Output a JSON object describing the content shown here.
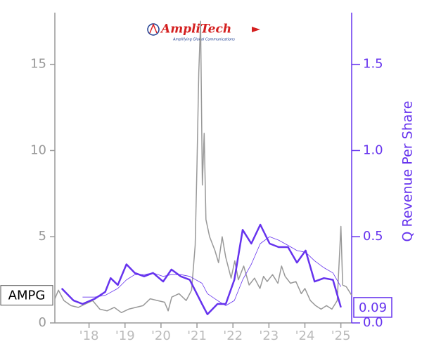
{
  "chart_data": {
    "type": "line",
    "ticker": "AMPG",
    "logo": {
      "text": "AmpliTech",
      "tagline": "Amplifying Global Communications"
    },
    "y2_label": "Q Revenue Per Share",
    "xlim": [
      2017.05,
      2025.3
    ],
    "xticks": [
      {
        "value": 2018,
        "label": "'18"
      },
      {
        "value": 2019,
        "label": "'19"
      },
      {
        "value": 2020,
        "label": "'20"
      },
      {
        "value": 2021,
        "label": "'21"
      },
      {
        "value": 2022,
        "label": "'22"
      },
      {
        "value": 2023,
        "label": "'23"
      },
      {
        "value": 2024,
        "label": "'24"
      },
      {
        "value": 2025,
        "label": "'25"
      }
    ],
    "ylim": [
      0,
      18
    ],
    "yticks": [
      0,
      5,
      10,
      15
    ],
    "y2lim": [
      0,
      1.8
    ],
    "y2ticks": [
      {
        "value": 0,
        "label": "0.0"
      },
      0.5,
      {
        "value": 1,
        "label": "1.0"
      },
      1.5
    ],
    "axis_color": "#999999",
    "y2_color": "#6633ee",
    "series": [
      {
        "color": "#999999",
        "line_width": 1.5,
        "x": [
          2017.05,
          2017.15,
          2017.3,
          2017.5,
          2017.7,
          2017.9,
          2018.1,
          2018.3,
          2018.5,
          2018.7,
          2018.9,
          2019.1,
          2019.3,
          2019.5,
          2019.7,
          2019.9,
          2020.1,
          2020.2,
          2020.3,
          2020.5,
          2020.7,
          2020.85,
          2020.95,
          2021.0,
          2021.05,
          2021.1,
          2021.15,
          2021.2,
          2021.25,
          2021.35,
          2021.5,
          2021.6,
          2021.7,
          2021.8,
          2021.95,
          2022.05,
          2022.15,
          2022.3,
          2022.45,
          2022.6,
          2022.75,
          2022.85,
          2022.95,
          2023.1,
          2023.25,
          2023.35,
          2023.45,
          2023.6,
          2023.75,
          2023.9,
          2024.0,
          2024.15,
          2024.3,
          2024.45,
          2024.6,
          2024.75,
          2024.9,
          2025.0,
          2025.05,
          2025.15,
          2025.3
        ],
        "values": [
          1.4,
          1.9,
          1.3,
          1.0,
          0.9,
          1.1,
          1.3,
          0.8,
          0.7,
          0.9,
          0.6,
          0.8,
          0.9,
          1.0,
          1.4,
          1.3,
          1.2,
          0.7,
          1.5,
          1.7,
          1.3,
          1.9,
          4.5,
          9,
          14.5,
          17.5,
          8,
          11,
          6,
          5,
          4.2,
          3.5,
          5,
          3.8,
          2.6,
          3.6,
          2.5,
          3.3,
          2.2,
          2.6,
          2.0,
          2.7,
          2.4,
          2.8,
          2.3,
          3.3,
          2.7,
          2.3,
          2.4,
          1.7,
          2.0,
          1.3,
          1.0,
          0.8,
          1.0,
          0.8,
          1.3,
          5.6,
          2.2,
          2.1,
          1.6
        ]
      },
      {
        "color": "#6633ee",
        "line_width": 2.5,
        "axis": "y2",
        "x": [
          2017.24,
          2017.57,
          2017.82,
          2018.16,
          2018.45,
          2018.6,
          2018.8,
          2019.04,
          2019.27,
          2019.53,
          2019.78,
          2020.06,
          2020.29,
          2020.55,
          2020.8,
          2021.14,
          2021.29,
          2021.57,
          2021.8,
          2022.04,
          2022.27,
          2022.51,
          2022.76,
          2023.02,
          2023.27,
          2023.53,
          2023.78,
          2024.02,
          2024.27,
          2024.53,
          2024.78,
          2025.0
        ],
        "values": [
          0.2,
          0.13,
          0.11,
          0.14,
          0.18,
          0.26,
          0.22,
          0.34,
          0.29,
          0.27,
          0.29,
          0.24,
          0.31,
          0.27,
          0.25,
          0.11,
          0.05,
          0.11,
          0.11,
          0.25,
          0.54,
          0.46,
          0.57,
          0.46,
          0.44,
          0.44,
          0.35,
          0.42,
          0.24,
          0.26,
          0.25,
          0.09
        ]
      },
      {
        "color": "#6633ee",
        "line_width": 0.8,
        "axis": "y2",
        "x": [
          2017.82,
          2018.16,
          2018.45,
          2018.8,
          2019.04,
          2019.27,
          2019.53,
          2019.78,
          2020.06,
          2020.29,
          2020.55,
          2020.8,
          2021.14,
          2021.29,
          2021.57,
          2021.8,
          2022.04,
          2022.27,
          2022.51,
          2022.76,
          2023.02,
          2023.27,
          2023.53,
          2023.78,
          2024.02,
          2024.27,
          2024.53,
          2024.78,
          2025.0
        ],
        "values": [
          0.15,
          0.15,
          0.16,
          0.2,
          0.25,
          0.28,
          0.28,
          0.29,
          0.27,
          0.28,
          0.28,
          0.27,
          0.23,
          0.17,
          0.13,
          0.1,
          0.13,
          0.25,
          0.34,
          0.46,
          0.5,
          0.48,
          0.45,
          0.42,
          0.41,
          0.36,
          0.32,
          0.29,
          0.21
        ]
      }
    ]
  }
}
